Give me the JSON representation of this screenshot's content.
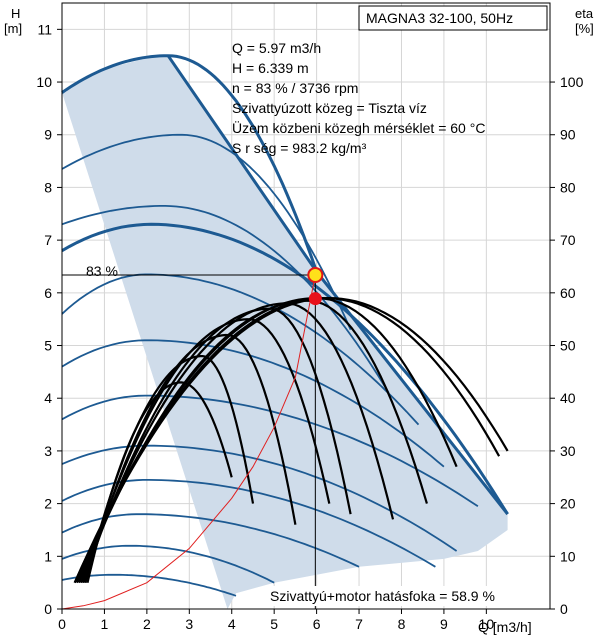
{
  "chart_data": {
    "type": "line",
    "title": "MAGNA3 32-100, 50Hz",
    "left_axis": {
      "label_top": "H",
      "label_unit": "[m]",
      "range": [
        0,
        11.5
      ],
      "ticks": [
        0,
        1,
        2,
        3,
        4,
        5,
        6,
        7,
        8,
        9,
        10,
        11
      ]
    },
    "right_axis": {
      "label_top": "eta",
      "label_unit": "[%]",
      "range": [
        0,
        115
      ],
      "ticks": [
        0,
        10,
        20,
        30,
        40,
        50,
        60,
        70,
        80,
        90,
        100
      ]
    },
    "x_axis": {
      "label": "Q [m3/h]",
      "range": [
        0,
        11.5
      ],
      "ticks": [
        0,
        1,
        2,
        3,
        4,
        5,
        6,
        7,
        8,
        9,
        10
      ]
    },
    "grid": true,
    "info_lines": [
      "Q = 5.97 m3/h",
      "H = 6.339 m",
      "n = 83 % / 3736 rpm",
      "Szivattyúzott közeg = Tiszta víz",
      "Üzem közbeni közegh  mérséklet = 60 °C",
      "S  r  ség = 983.2 kg/m³"
    ],
    "curve_label": "83 %",
    "efficiency_note": "Szivattyú+motor hatásfoka = 58.9 %",
    "operating_point": {
      "Q": 5.97,
      "H": 6.339
    },
    "efficiency_point": {
      "Q": 5.97,
      "eta": 58.9
    },
    "envelope": [
      [
        0,
        9.8
      ],
      [
        1,
        10.25
      ],
      [
        2,
        10.45
      ],
      [
        2.5,
        10.5
      ],
      [
        6,
        6.4
      ],
      [
        10.5,
        1.8
      ],
      [
        10.5,
        1.5
      ],
      [
        9.8,
        1.1
      ],
      [
        9,
        0.95
      ],
      [
        7,
        0.8
      ],
      [
        5,
        0.5
      ],
      [
        4.1,
        0.3
      ],
      [
        3.9,
        0
      ]
    ],
    "speed_curves": [
      {
        "H0": 9.8,
        "Qpeak": 2.5,
        "Hpeak": 10.5,
        "Qend": 6.0,
        "Hend": 6.4
      },
      {
        "H0": 8.35,
        "Qpeak": 2.8,
        "Hpeak": 9.0,
        "Qend": 6.8,
        "Hend": 5.3
      },
      {
        "H0": 7.3,
        "Qpeak": 2.4,
        "Hpeak": 7.65,
        "Qend": 7.7,
        "Hend": 4.1
      },
      {
        "H0": 6.8,
        "Qpeak": 2.1,
        "Hpeak": 7.3,
        "Qend": 10.5,
        "Hend": 1.8
      },
      {
        "H0": 5.6,
        "Qpeak": 2.0,
        "Hpeak": 6.35,
        "Qend": 8.4,
        "Hend": 3.5
      },
      {
        "H0": 4.6,
        "Qpeak": 2.0,
        "Hpeak": 5.1,
        "Qend": 9.0,
        "Hend": 2.7
      },
      {
        "H0": 3.6,
        "Qpeak": 2.0,
        "Hpeak": 4.05,
        "Qend": 9.8,
        "Hend": 1.95
      },
      {
        "H0": 2.75,
        "Qpeak": 2.0,
        "Hpeak": 3.1,
        "Qend": 9.3,
        "Hend": 1.1
      },
      {
        "H0": 2.05,
        "Qpeak": 2.0,
        "Hpeak": 2.45,
        "Qend": 8.8,
        "Hend": 0.8
      },
      {
        "H0": 1.45,
        "Qpeak": 1.8,
        "Hpeak": 1.8,
        "Qend": 7.0,
        "Hend": 0.8
      },
      {
        "H0": 0.95,
        "Qpeak": 1.6,
        "Hpeak": 1.2,
        "Qend": 5.0,
        "Hend": 0.5
      },
      {
        "H0": 0.55,
        "Qpeak": 1.2,
        "Hpeak": 0.65,
        "Qend": 4.1,
        "Hend": 0.25
      }
    ],
    "efficiency_curves": [
      {
        "Qstart": 0.3,
        "Qpeak": 6.3,
        "etaPeak": 59,
        "Qend": 10.5,
        "etaEnd": 30
      },
      {
        "Qstart": 0.3,
        "Qpeak": 6.2,
        "etaPeak": 59,
        "Qend": 10.3,
        "etaEnd": 29
      },
      {
        "Qstart": 0.35,
        "Qpeak": 6.0,
        "etaPeak": 59,
        "Qend": 9.3,
        "etaEnd": 27
      },
      {
        "Qstart": 0.4,
        "Qpeak": 5.8,
        "etaPeak": 58.5,
        "Qend": 8.6,
        "etaEnd": 20
      },
      {
        "Qstart": 0.45,
        "Qpeak": 5.3,
        "etaPeak": 58,
        "Qend": 7.8,
        "etaEnd": 17
      },
      {
        "Qstart": 0.5,
        "Qpeak": 4.9,
        "etaPeak": 57,
        "Qend": 6.8,
        "etaEnd": 18
      },
      {
        "Qstart": 0.5,
        "Qpeak": 4.4,
        "etaPeak": 55,
        "Qend": 6.3,
        "etaEnd": 20
      },
      {
        "Qstart": 0.55,
        "Qpeak": 3.9,
        "etaPeak": 52,
        "Qend": 5.5,
        "etaEnd": 16
      },
      {
        "Qstart": 0.55,
        "Qpeak": 3.3,
        "etaPeak": 48,
        "Qend": 4.5,
        "etaEnd": 20
      },
      {
        "Qstart": 0.6,
        "Qpeak": 2.8,
        "etaPeak": 43,
        "Qend": 4.0,
        "etaEnd": 25
      }
    ],
    "power_curve": [
      [
        0,
        0
      ],
      [
        0.5,
        0.06
      ],
      [
        1,
        0.16
      ],
      [
        2,
        0.5
      ],
      [
        3,
        1.15
      ],
      [
        4,
        2.1
      ],
      [
        4.5,
        2.7
      ],
      [
        5,
        3.45
      ],
      [
        5.5,
        4.4
      ],
      [
        5.97,
        6.34
      ]
    ]
  }
}
